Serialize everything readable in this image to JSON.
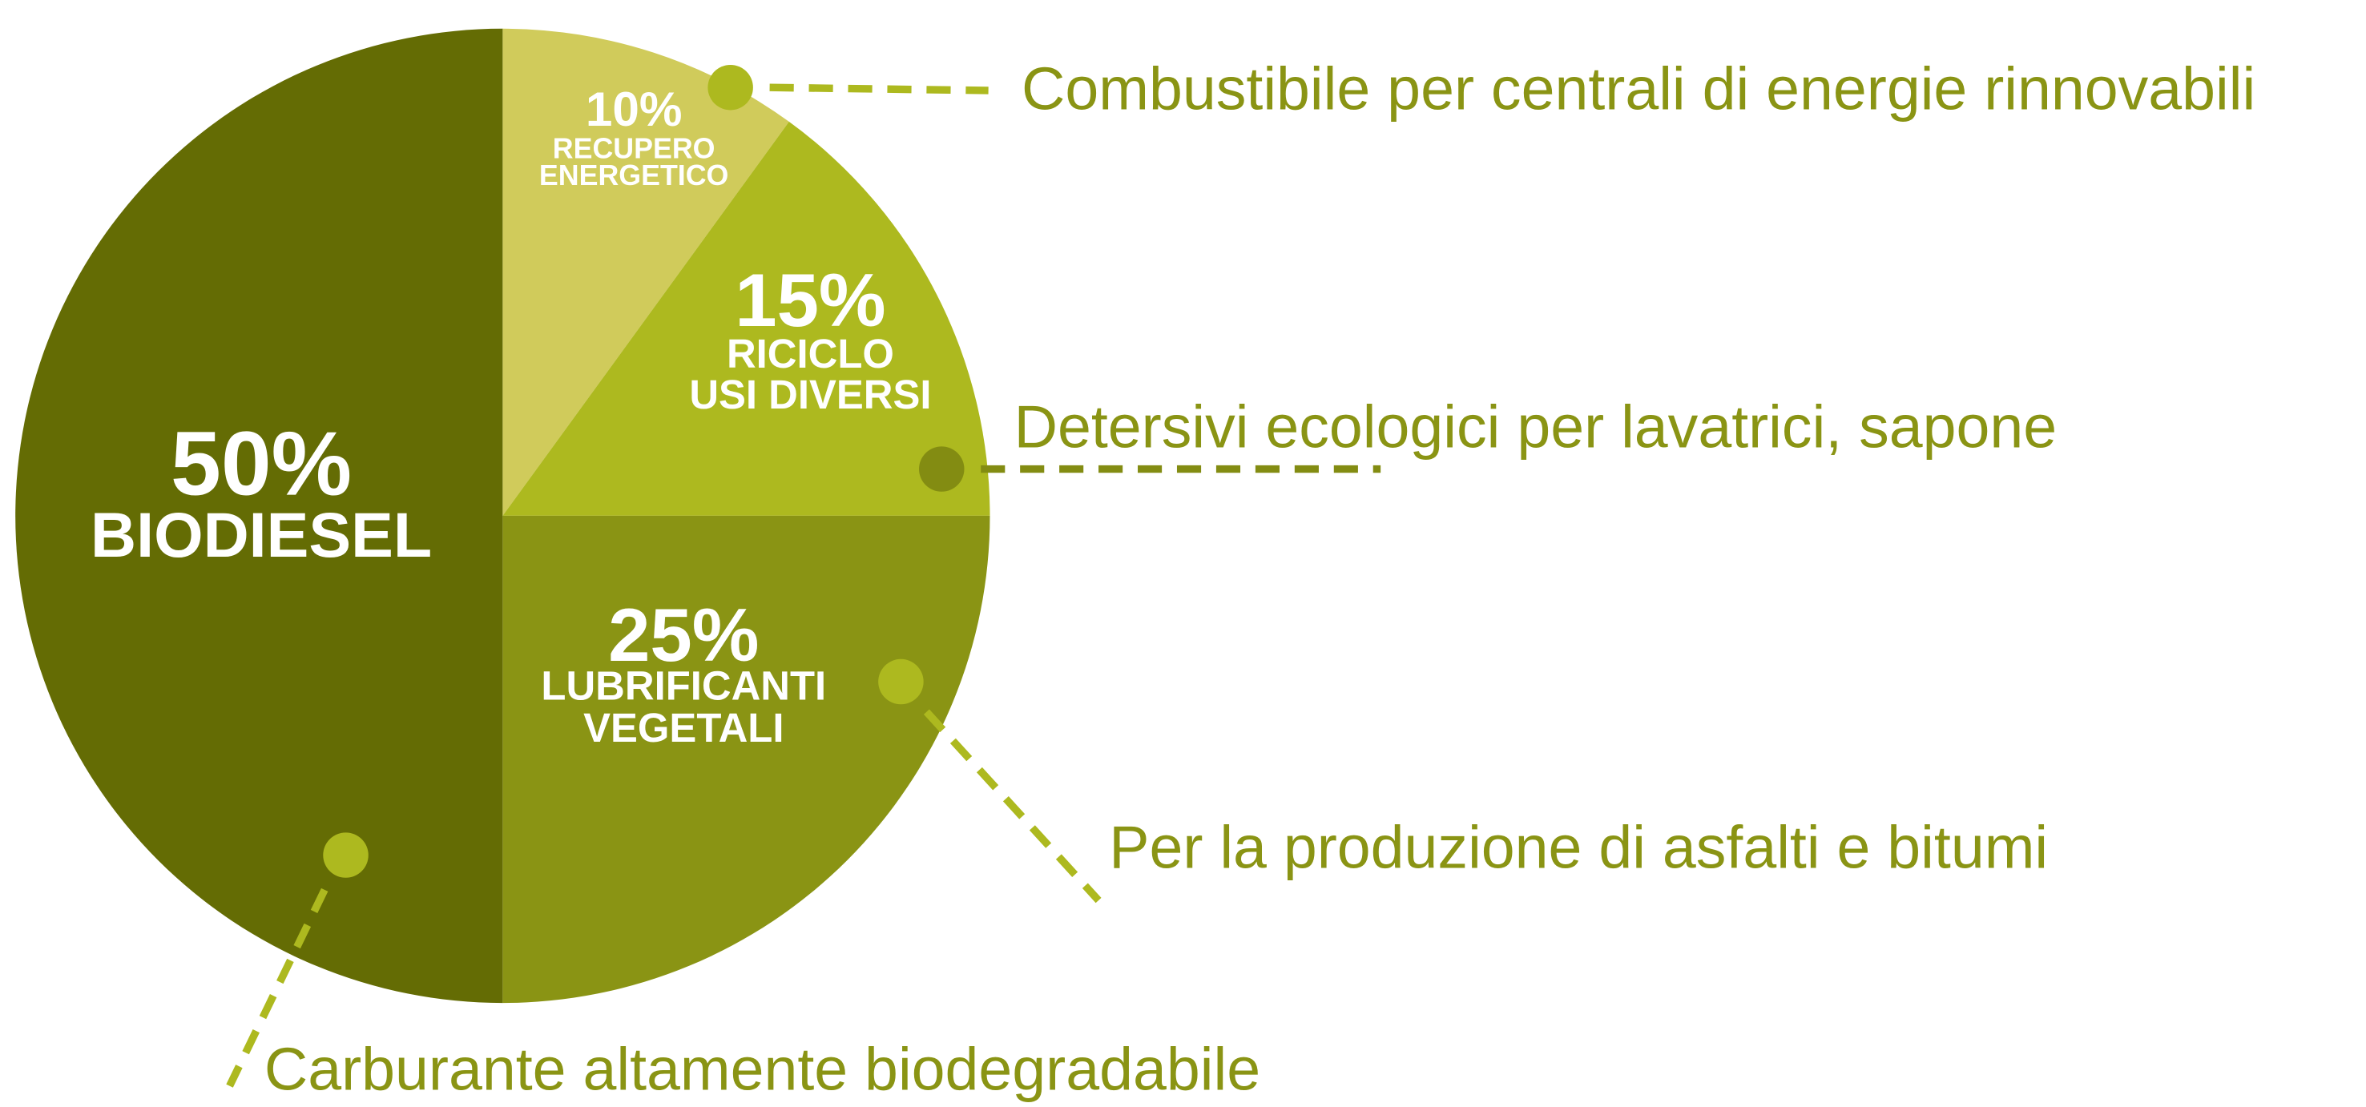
{
  "chart_data": {
    "type": "pie",
    "categories": [
      "RECUPERO ENERGETICO",
      "RICICLO USI DIVERSI",
      "LUBRIFICANTI VEGETALI",
      "BIODIESEL"
    ],
    "values": [
      10,
      15,
      25,
      50
    ],
    "value_labels": [
      "10%",
      "15%",
      "25%",
      "50%"
    ],
    "colors": [
      "#d0cb5b",
      "#adb91f",
      "#8a9414",
      "#646c04"
    ],
    "annotations": [
      "Combustibile per centrali di energie rinnovabili",
      "Detersivi ecologici per lavatrici, sapone",
      "Per la produzione di asfalti e bitumi",
      "Carburante altamente biodegradabile"
    ]
  }
}
